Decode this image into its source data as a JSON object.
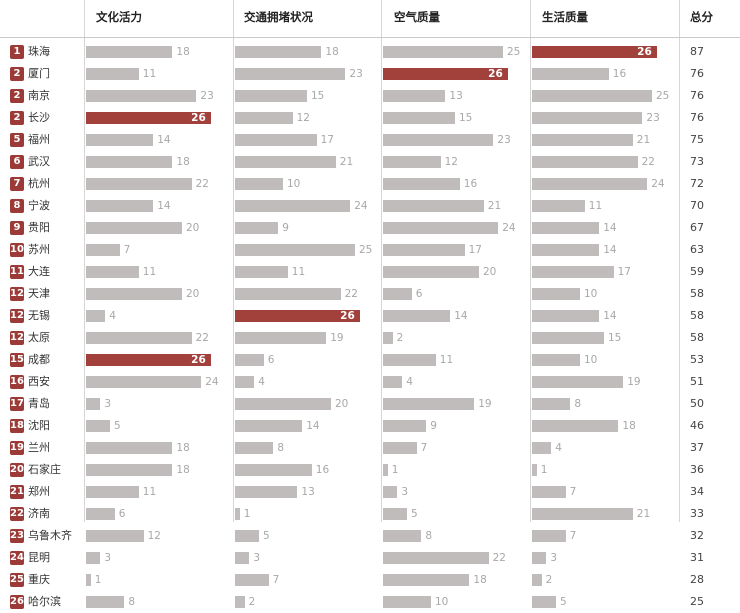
{
  "chart_data": {
    "type": "table",
    "columns": [
      "文化活力",
      "交通拥堵状况",
      "空气质量",
      "生活质量",
      "总分"
    ],
    "max_value": 26,
    "colors": {
      "bar": "#c0bcbb",
      "top_bar": "#a2403b",
      "rank_badge": "#9b3a36"
    },
    "rows": [
      {
        "rank": "1",
        "city": "珠海",
        "values": [
          18,
          18,
          25,
          26
        ],
        "total": "87"
      },
      {
        "rank": "2",
        "city": "厦门",
        "values": [
          11,
          23,
          26,
          16
        ],
        "total": "76"
      },
      {
        "rank": "2",
        "city": "南京",
        "values": [
          23,
          15,
          13,
          25
        ],
        "total": "76"
      },
      {
        "rank": "2",
        "city": "长沙",
        "values": [
          26,
          12,
          15,
          23
        ],
        "total": "76"
      },
      {
        "rank": "5",
        "city": "福州",
        "values": [
          14,
          17,
          23,
          21
        ],
        "total": "75"
      },
      {
        "rank": "6",
        "city": "武汉",
        "values": [
          18,
          21,
          12,
          22
        ],
        "total": "73"
      },
      {
        "rank": "7",
        "city": "杭州",
        "values": [
          22,
          10,
          16,
          24
        ],
        "total": "72"
      },
      {
        "rank": "8",
        "city": "宁波",
        "values": [
          14,
          24,
          21,
          11
        ],
        "total": "70"
      },
      {
        "rank": "9",
        "city": "贵阳",
        "values": [
          20,
          9,
          24,
          14
        ],
        "total": "67"
      },
      {
        "rank": "10",
        "city": "苏州",
        "values": [
          7,
          25,
          17,
          14
        ],
        "total": "63"
      },
      {
        "rank": "11",
        "city": "大连",
        "values": [
          11,
          11,
          20,
          17
        ],
        "total": "59"
      },
      {
        "rank": "12",
        "city": "天津",
        "values": [
          20,
          22,
          6,
          10
        ],
        "total": "58"
      },
      {
        "rank": "12",
        "city": "无锡",
        "values": [
          4,
          26,
          14,
          14
        ],
        "total": "58"
      },
      {
        "rank": "12",
        "city": "太原",
        "values": [
          22,
          19,
          2,
          15
        ],
        "total": "58"
      },
      {
        "rank": "15",
        "city": "成都",
        "values": [
          26,
          6,
          11,
          10
        ],
        "total": "53"
      },
      {
        "rank": "16",
        "city": "西安",
        "values": [
          24,
          4,
          4,
          19
        ],
        "total": "51"
      },
      {
        "rank": "17",
        "city": "青岛",
        "values": [
          3,
          20,
          19,
          8
        ],
        "total": "50"
      },
      {
        "rank": "18",
        "city": "沈阳",
        "values": [
          5,
          14,
          9,
          18
        ],
        "total": "46"
      },
      {
        "rank": "19",
        "city": "兰州",
        "values": [
          18,
          8,
          7,
          4
        ],
        "total": "37"
      },
      {
        "rank": "20",
        "city": "石家庄",
        "values": [
          18,
          16,
          1,
          1
        ],
        "total": "36"
      },
      {
        "rank": "21",
        "city": "郑州",
        "values": [
          11,
          13,
          3,
          7
        ],
        "total": "34"
      },
      {
        "rank": "22",
        "city": "济南",
        "values": [
          6,
          1,
          5,
          21
        ],
        "total": "33"
      },
      {
        "rank": "23",
        "city": "乌鲁木齐",
        "values": [
          12,
          5,
          8,
          7
        ],
        "total": "32"
      },
      {
        "rank": "24",
        "city": "昆明",
        "values": [
          3,
          3,
          22,
          3
        ],
        "total": "31"
      },
      {
        "rank": "25",
        "city": "重庆",
        "values": [
          1,
          7,
          18,
          2
        ],
        "total": "28"
      },
      {
        "rank": "26",
        "city": "哈尔滨",
        "values": [
          8,
          2,
          10,
          5
        ],
        "total": "25"
      }
    ]
  }
}
